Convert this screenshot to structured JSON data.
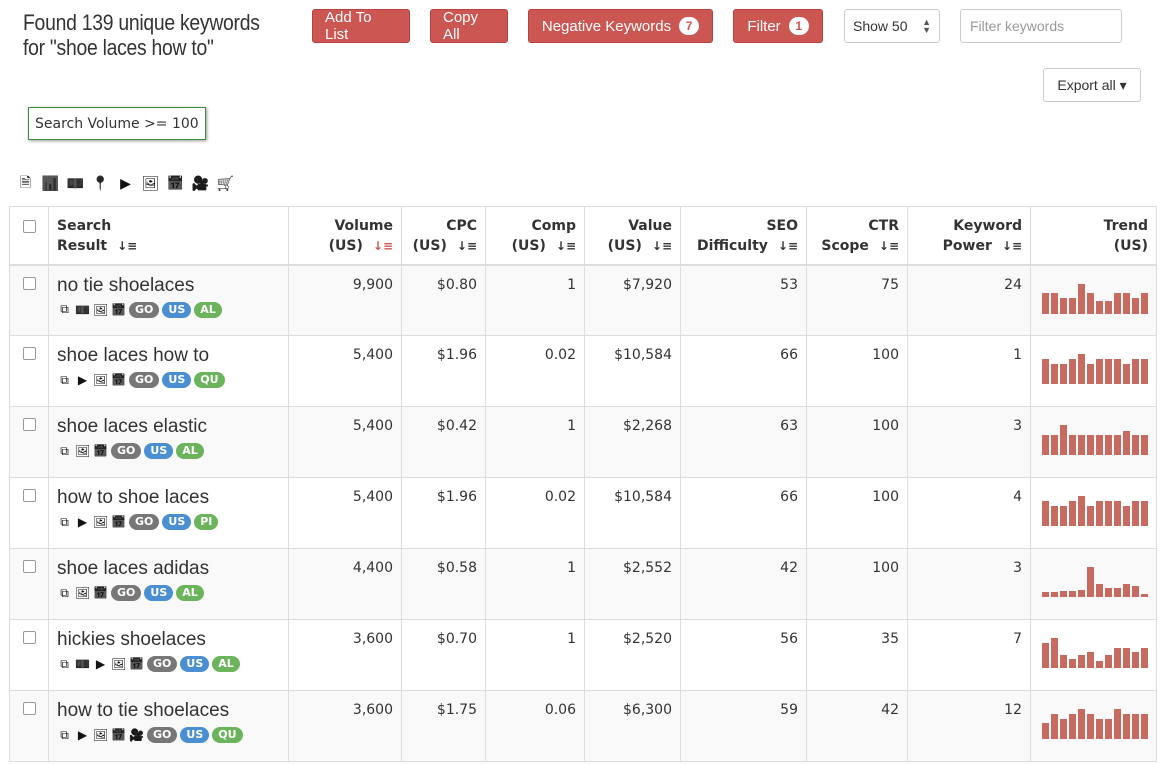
{
  "header": {
    "title_line1": "Found 139 unique keywords",
    "title_line2": "for \"shoe laces how to\""
  },
  "toolbar": {
    "add_to_list": "Add To List",
    "copy_all": "Copy All",
    "negative_keywords": "Negative Keywords",
    "negative_count": "7",
    "filter": "Filter",
    "filter_count": "1",
    "show": "Show 50",
    "filter_placeholder": "Filter keywords",
    "export": "Export all ▾"
  },
  "active_filter": "Search Volume >= 100",
  "colors": {
    "accent": "#cc5652",
    "trend_bar": "#c76a5f",
    "pill_go": "#777777",
    "pill_us": "#4a8fd1",
    "pill_third": "#6bb45c"
  },
  "column_icons": [
    "document-icon",
    "bar-chart-icon",
    "money-icon",
    "location-pin-icon",
    "youtube-icon",
    "image-icon",
    "calendar-icon",
    "video-icon",
    "cart-icon"
  ],
  "columns": [
    {
      "l1": "Search",
      "l2": "Result"
    },
    {
      "l1": "Volume",
      "l2": "(US)"
    },
    {
      "l1": "CPC",
      "l2": "(US)"
    },
    {
      "l1": "Comp",
      "l2": "(US)"
    },
    {
      "l1": "Value",
      "l2": "(US)"
    },
    {
      "l1": "SEO",
      "l2": "Difficulty"
    },
    {
      "l1": "CTR",
      "l2": "Scope"
    },
    {
      "l1": "Keyword",
      "l2": "Power"
    },
    {
      "l1": "Trend",
      "l2": "(US)"
    }
  ],
  "rows": [
    {
      "keyword": "no tie shoelaces",
      "icons": [
        "copy",
        "money",
        "image",
        "calendar"
      ],
      "tags": [
        "GO",
        "US",
        "AL"
      ],
      "volume": "9,900",
      "cpc": "$0.80",
      "comp": "1",
      "value": "$7,920",
      "seo": "53",
      "ctr": "75",
      "power": "24",
      "trend": [
        67,
        67,
        53,
        53,
        100,
        67,
        43,
        43,
        67,
        67,
        53,
        67
      ]
    },
    {
      "keyword": "shoe laces how to",
      "icons": [
        "copy",
        "youtube",
        "image",
        "calendar"
      ],
      "tags": [
        "GO",
        "US",
        "QU"
      ],
      "volume": "5,400",
      "cpc": "$1.96",
      "comp": "0.02",
      "value": "$10,584",
      "seo": "66",
      "ctr": "100",
      "power": "1",
      "trend": [
        83,
        67,
        67,
        83,
        100,
        67,
        83,
        83,
        83,
        67,
        83,
        83
      ]
    },
    {
      "keyword": "shoe laces elastic",
      "icons": [
        "copy",
        "image",
        "calendar"
      ],
      "tags": [
        "GO",
        "US",
        "AL"
      ],
      "volume": "5,400",
      "cpc": "$0.42",
      "comp": "1",
      "value": "$2,268",
      "seo": "63",
      "ctr": "100",
      "power": "3",
      "trend": [
        67,
        67,
        100,
        67,
        67,
        67,
        67,
        67,
        67,
        80,
        67,
        67
      ]
    },
    {
      "keyword": "how to shoe laces",
      "icons": [
        "copy",
        "youtube",
        "image",
        "calendar"
      ],
      "tags": [
        "GO",
        "US",
        "PI"
      ],
      "volume": "5,400",
      "cpc": "$1.96",
      "comp": "0.02",
      "value": "$10,584",
      "seo": "66",
      "ctr": "100",
      "power": "4",
      "trend": [
        83,
        67,
        67,
        83,
        100,
        67,
        83,
        83,
        83,
        67,
        83,
        83
      ]
    },
    {
      "keyword": "shoe laces adidas",
      "icons": [
        "copy",
        "image",
        "calendar"
      ],
      "tags": [
        "GO",
        "US",
        "AL"
      ],
      "volume": "4,400",
      "cpc": "$0.58",
      "comp": "1",
      "value": "$2,552",
      "seo": "42",
      "ctr": "100",
      "power": "3",
      "trend": [
        17,
        17,
        20,
        20,
        23,
        100,
        43,
        30,
        30,
        43,
        37,
        10
      ]
    },
    {
      "keyword": "hickies shoelaces",
      "icons": [
        "copy",
        "money",
        "youtube",
        "image",
        "calendar"
      ],
      "tags": [
        "GO",
        "US",
        "AL"
      ],
      "volume": "3,600",
      "cpc": "$0.70",
      "comp": "1",
      "value": "$2,520",
      "seo": "56",
      "ctr": "35",
      "power": "7",
      "trend": [
        83,
        100,
        43,
        30,
        43,
        53,
        23,
        43,
        67,
        67,
        53,
        67
      ]
    },
    {
      "keyword": "how to tie shoelaces",
      "icons": [
        "copy",
        "youtube",
        "image",
        "calendar",
        "video"
      ],
      "tags": [
        "GO",
        "US",
        "QU"
      ],
      "volume": "3,600",
      "cpc": "$1.75",
      "comp": "0.06",
      "value": "$6,300",
      "seo": "59",
      "ctr": "42",
      "power": "12",
      "trend": [
        53,
        83,
        67,
        83,
        100,
        83,
        67,
        67,
        100,
        83,
        83,
        83
      ]
    }
  ]
}
